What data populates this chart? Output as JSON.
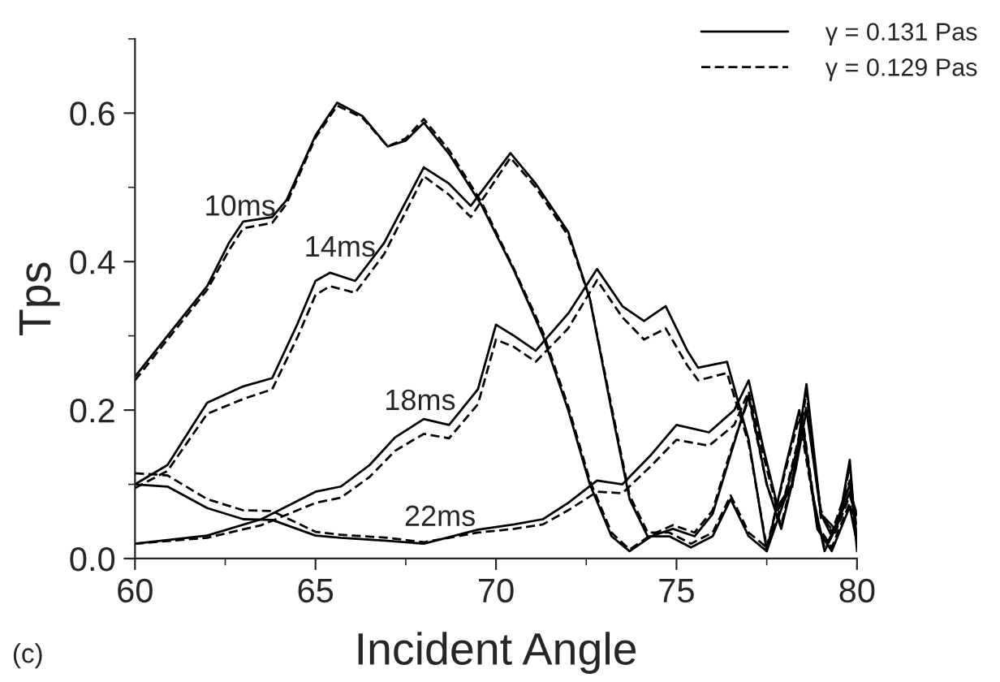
{
  "chart_data": {
    "type": "line",
    "xlabel": "Incident Angle",
    "ylabel": "Tps",
    "xlim": [
      60,
      80
    ],
    "xticks": [
      60,
      65,
      70,
      75,
      80
    ],
    "ylim": [
      0,
      0.7
    ],
    "yticks": [
      {
        "value": 0,
        "label": "0.0"
      },
      {
        "value": 0.2,
        "label": "0.2"
      },
      {
        "value": 0.4,
        "label": "0.4"
      },
      {
        "value": 0.6,
        "label": "0.6"
      }
    ],
    "grid": false,
    "legend": "top right",
    "marker": "none",
    "series": [
      {
        "name": "γ = 0.131 Pas",
        "color": "#000000",
        "line_style": "solid",
        "x": [
          60,
          60.9,
          62,
          62.6,
          63,
          63.8,
          64.2,
          65,
          65.6,
          66.3,
          67,
          67.5,
          68,
          68.7,
          69.6,
          70.5,
          71.3,
          72,
          72.6,
          73.2,
          73.7,
          74.3,
          74.9,
          75.5,
          76,
          76.5,
          77,
          77.5,
          77.9,
          78.3,
          78.6,
          79,
          79.3,
          79.8,
          80
        ],
        "values": [
          0.245,
          0.3,
          0.367,
          0.425,
          0.454,
          0.46,
          0.483,
          0.57,
          0.614,
          0.596,
          0.555,
          0.563,
          0.587,
          0.545,
          0.476,
          0.388,
          0.3,
          0.2,
          0.1,
          0.03,
          0.01,
          0.03,
          0.04,
          0.03,
          0.06,
          0.14,
          0.22,
          0.1,
          0.04,
          0.12,
          0.2,
          0.06,
          0.03,
          0.1,
          0.03
        ]
      },
      {
        "name": "γ = 0.129 Pas",
        "color": "#000000",
        "line_style": "dashed",
        "x": [
          60,
          60.9,
          62,
          62.6,
          63,
          63.8,
          64.2,
          65,
          65.6,
          66.3,
          67,
          67.5,
          68,
          68.7,
          69.6,
          70.5,
          71.3,
          72,
          72.6,
          73.2,
          73.7,
          74.3,
          74.9,
          75.5,
          76,
          76.5,
          77,
          77.5,
          77.9,
          78.3,
          78.6,
          79,
          79.3,
          79.8,
          80
        ],
        "values": [
          0.24,
          0.295,
          0.362,
          0.415,
          0.445,
          0.452,
          0.478,
          0.567,
          0.61,
          0.594,
          0.555,
          0.566,
          0.592,
          0.55,
          0.48,
          0.39,
          0.305,
          0.205,
          0.105,
          0.035,
          0.012,
          0.032,
          0.045,
          0.035,
          0.065,
          0.145,
          0.215,
          0.1,
          0.045,
          0.125,
          0.205,
          0.065,
          0.035,
          0.105,
          0.04
        ]
      },
      {
        "color": "#000000",
        "line_style": "solid",
        "x": [
          60,
          60.9,
          62,
          63,
          63.8,
          64.5,
          65,
          65.4,
          66.1,
          66.9,
          68,
          68.7,
          69.3,
          70.4,
          71.1,
          72,
          72.6,
          73.2,
          73.7,
          74.2,
          74.8,
          75.4,
          76,
          76.5,
          77,
          77.5,
          78,
          78.5,
          78.9,
          79.3,
          79.8,
          80
        ],
        "values": [
          0.1,
          0.126,
          0.21,
          0.232,
          0.243,
          0.316,
          0.374,
          0.385,
          0.374,
          0.425,
          0.527,
          0.505,
          0.475,
          0.546,
          0.505,
          0.44,
          0.35,
          0.2,
          0.08,
          0.03,
          0.03,
          0.015,
          0.03,
          0.08,
          0.03,
          0.01,
          0.08,
          0.18,
          0.04,
          0.01,
          0.07,
          0.02
        ]
      },
      {
        "color": "#000000",
        "line_style": "dashed",
        "x": [
          60,
          60.9,
          62,
          63,
          63.8,
          64.5,
          65,
          65.4,
          66.1,
          66.9,
          68,
          68.7,
          69.3,
          70.4,
          71.1,
          72,
          72.6,
          73.2,
          73.7,
          74.2,
          74.8,
          75.4,
          76,
          76.5,
          77,
          77.5,
          78,
          78.5,
          78.9,
          79.3,
          79.8,
          80
        ],
        "values": [
          0.095,
          0.118,
          0.195,
          0.215,
          0.228,
          0.298,
          0.355,
          0.367,
          0.358,
          0.41,
          0.515,
          0.49,
          0.46,
          0.54,
          0.5,
          0.435,
          0.35,
          0.205,
          0.085,
          0.035,
          0.035,
          0.02,
          0.035,
          0.085,
          0.035,
          0.015,
          0.085,
          0.185,
          0.045,
          0.015,
          0.075,
          0.025
        ]
      },
      {
        "color": "#000000",
        "line_style": "solid",
        "x": [
          60,
          62,
          63.5,
          65,
          65.7,
          66.5,
          67.2,
          68,
          68.7,
          69.5,
          70,
          70.5,
          71.1,
          72,
          72.8,
          73.5,
          74.1,
          74.7,
          75.3,
          75.6,
          76.4,
          77,
          77.5,
          78,
          78.4,
          78.8,
          79.1,
          79.5,
          79.8,
          80
        ],
        "values": [
          0.02,
          0.031,
          0.053,
          0.09,
          0.097,
          0.126,
          0.163,
          0.188,
          0.18,
          0.228,
          0.315,
          0.3,
          0.28,
          0.33,
          0.39,
          0.34,
          0.32,
          0.34,
          0.28,
          0.257,
          0.265,
          0.16,
          0.01,
          0.12,
          0.2,
          0.08,
          0.01,
          0.05,
          0.133,
          0.01
        ]
      },
      {
        "color": "#000000",
        "line_style": "dashed",
        "x": [
          60,
          62,
          63.5,
          65,
          65.7,
          66.5,
          67.2,
          68,
          68.7,
          69.5,
          70,
          70.5,
          71.1,
          72,
          72.8,
          73.5,
          74.1,
          74.7,
          75.3,
          75.6,
          76.4,
          77,
          77.5,
          78,
          78.4,
          78.8,
          79.1,
          79.5,
          79.8,
          80
        ],
        "values": [
          0.02,
          0.028,
          0.045,
          0.075,
          0.082,
          0.11,
          0.145,
          0.168,
          0.162,
          0.208,
          0.295,
          0.285,
          0.265,
          0.31,
          0.375,
          0.325,
          0.295,
          0.31,
          0.26,
          0.24,
          0.25,
          0.155,
          0.015,
          0.115,
          0.19,
          0.075,
          0.015,
          0.05,
          0.125,
          0.015
        ]
      },
      {
        "color": "#000000",
        "line_style": "solid",
        "x": [
          60,
          60.9,
          62,
          63,
          63.8,
          65,
          65.7,
          67,
          68,
          69.5,
          70.5,
          71.3,
          72,
          72.8,
          73.5,
          74.3,
          75,
          75.9,
          76.6,
          77,
          77.4,
          77.8,
          78.2,
          78.6,
          79,
          79.4,
          79.8,
          80
        ],
        "values": [
          0.1,
          0.097,
          0.068,
          0.053,
          0.052,
          0.031,
          0.028,
          0.024,
          0.02,
          0.039,
          0.046,
          0.053,
          0.075,
          0.105,
          0.1,
          0.14,
          0.18,
          0.17,
          0.2,
          0.24,
          0.15,
          0.07,
          0.1,
          0.235,
          0.06,
          0.04,
          0.09,
          0.06
        ]
      },
      {
        "color": "#000000",
        "line_style": "dashed",
        "x": [
          60,
          60.9,
          62,
          63,
          63.8,
          65,
          65.7,
          67,
          68,
          69.5,
          70.5,
          71.3,
          72,
          72.8,
          73.5,
          74.3,
          75,
          75.9,
          76.6,
          77,
          77.4,
          77.8,
          78.2,
          78.6,
          79,
          79.4,
          79.8,
          80
        ],
        "values": [
          0.115,
          0.112,
          0.08,
          0.065,
          0.064,
          0.036,
          0.032,
          0.028,
          0.022,
          0.035,
          0.04,
          0.046,
          0.065,
          0.09,
          0.088,
          0.125,
          0.16,
          0.152,
          0.18,
          0.225,
          0.14,
          0.065,
          0.095,
          0.225,
          0.055,
          0.035,
          0.085,
          0.055
        ]
      }
    ],
    "annotations": [
      "10ms",
      "14ms",
      "18ms",
      "22ms",
      "(c)"
    ]
  }
}
